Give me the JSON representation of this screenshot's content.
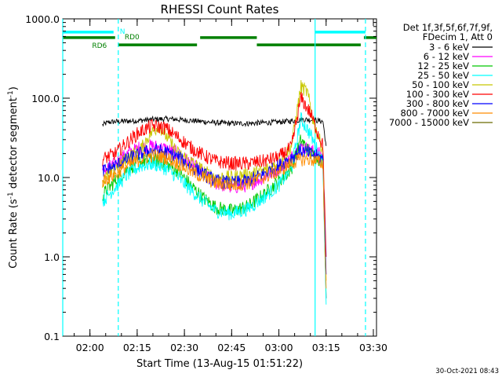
{
  "chart_data": {
    "type": "line",
    "title": "RHESSI Count Rates",
    "xlabel": "Start Time (13-Aug-15 01:51:22)",
    "ylabel_main": "Count Rate (s",
    "ylabel_sup1": "-1",
    "ylabel_mid": " detector segment",
    "ylabel_sup2": "-1",
    "ylabel_end": ")",
    "yscale": "log",
    "ylim": [
      0.1,
      1000
    ],
    "xlim": [
      "01:51:22",
      "03:31:00"
    ],
    "grid": false,
    "x_ticks": [
      {
        "label": "02:00",
        "t": "02:00"
      },
      {
        "label": "02:15",
        "t": "02:15"
      },
      {
        "label": "02:30",
        "t": "02:30"
      },
      {
        "label": "02:45",
        "t": "02:45"
      },
      {
        "label": "03:00",
        "t": "03:00"
      },
      {
        "label": "03:15",
        "t": "03:15"
      },
      {
        "label": "03:30",
        "t": "03:30"
      }
    ],
    "y_ticks": [
      {
        "label": "0.1",
        "value": 0.1
      },
      {
        "label": "1.0",
        "value": 1
      },
      {
        "label": "10.0",
        "value": 10
      },
      {
        "label": "100.0",
        "value": 100
      },
      {
        "label": "1000.0",
        "value": 1000
      }
    ],
    "legend": {
      "placement": "top-right",
      "header": [
        "Det 1f,3f,5f,6f,7f,9f,",
        "FDecim 1, Att 0"
      ]
    },
    "series": [
      {
        "name": "3 - 6 keV",
        "color": "#000000",
        "points": [
          [
            "02:04",
            "46"
          ],
          [
            "02:06",
            "50"
          ],
          [
            "02:10",
            "51"
          ],
          [
            "02:15",
            "52"
          ],
          [
            "02:20",
            "54"
          ],
          [
            "02:25",
            "55"
          ],
          [
            "02:30",
            "53"
          ],
          [
            "02:35",
            "51"
          ],
          [
            "02:40",
            "49"
          ],
          [
            "02:45",
            "48"
          ],
          [
            "02:50",
            "48"
          ],
          [
            "02:55",
            "49"
          ],
          [
            "03:00",
            "50"
          ],
          [
            "03:05",
            "52"
          ],
          [
            "03:08",
            "54"
          ],
          [
            "03:11",
            "53"
          ],
          [
            "03:14",
            "51"
          ],
          [
            "03:15",
            "25"
          ]
        ]
      },
      {
        "name": "6 - 12 keV",
        "color": "#ff00ff",
        "points": [
          [
            "02:04",
            "12"
          ],
          [
            "02:08",
            "15"
          ],
          [
            "02:12",
            "20"
          ],
          [
            "02:16",
            "24"
          ],
          [
            "02:20",
            "25"
          ],
          [
            "02:24",
            "23"
          ],
          [
            "02:28",
            "20"
          ],
          [
            "02:32",
            "15"
          ],
          [
            "02:36",
            "11"
          ],
          [
            "02:40",
            "8.5"
          ],
          [
            "02:45",
            "7.5"
          ],
          [
            "02:50",
            "8"
          ],
          [
            "02:55",
            "10"
          ],
          [
            "03:00",
            "13"
          ],
          [
            "03:04",
            "18"
          ],
          [
            "03:07",
            "25"
          ],
          [
            "03:10",
            "22"
          ],
          [
            "03:14",
            "19"
          ],
          [
            "03:15",
            "0.3"
          ]
        ]
      },
      {
        "name": "12 - 25 keV",
        "color": "#00c800",
        "points": [
          [
            "02:04",
            "6"
          ],
          [
            "02:08",
            "9"
          ],
          [
            "02:12",
            "13"
          ],
          [
            "02:16",
            "16"
          ],
          [
            "02:20",
            "17"
          ],
          [
            "02:24",
            "15"
          ],
          [
            "02:28",
            "12"
          ],
          [
            "02:32",
            "8"
          ],
          [
            "02:36",
            "5.5"
          ],
          [
            "02:40",
            "4.2"
          ],
          [
            "02:45",
            "3.8"
          ],
          [
            "02:50",
            "4.3"
          ],
          [
            "02:55",
            "6"
          ],
          [
            "03:00",
            "9"
          ],
          [
            "03:04",
            "13"
          ],
          [
            "03:07",
            "30"
          ],
          [
            "03:10",
            "20"
          ],
          [
            "03:14",
            "16"
          ],
          [
            "03:15",
            "0.3"
          ]
        ]
      },
      {
        "name": "25 - 50 keV",
        "color": "#00ffff",
        "points": [
          [
            "02:04",
            "5"
          ],
          [
            "02:08",
            "7.5"
          ],
          [
            "02:12",
            "11"
          ],
          [
            "02:16",
            "14"
          ],
          [
            "02:20",
            "15"
          ],
          [
            "02:24",
            "13"
          ],
          [
            "02:28",
            "10"
          ],
          [
            "02:32",
            "7"
          ],
          [
            "02:36",
            "5"
          ],
          [
            "02:40",
            "3.8"
          ],
          [
            "02:45",
            "3.5"
          ],
          [
            "02:50",
            "4"
          ],
          [
            "02:55",
            "5.5"
          ],
          [
            "03:00",
            "8"
          ],
          [
            "03:04",
            "13"
          ],
          [
            "03:07",
            "55"
          ],
          [
            "03:10",
            "35"
          ],
          [
            "03:14",
            "15"
          ],
          [
            "03:15",
            "0.25"
          ]
        ]
      },
      {
        "name": "50 - 100 keV",
        "color": "#c8c800",
        "points": [
          [
            "02:04",
            "9"
          ],
          [
            "02:08",
            "13"
          ],
          [
            "02:12",
            "18"
          ],
          [
            "02:16",
            "22"
          ],
          [
            "02:19",
            "35"
          ],
          [
            "02:22",
            "45"
          ],
          [
            "02:25",
            "30"
          ],
          [
            "02:28",
            "20"
          ],
          [
            "02:32",
            "16"
          ],
          [
            "02:36",
            "12"
          ],
          [
            "02:40",
            "10"
          ],
          [
            "02:45",
            "10"
          ],
          [
            "02:50",
            "11"
          ],
          [
            "02:55",
            "12"
          ],
          [
            "03:00",
            "15"
          ],
          [
            "03:04",
            "25"
          ],
          [
            "03:07",
            "140"
          ],
          [
            "03:09",
            "120"
          ],
          [
            "03:11",
            "50"
          ],
          [
            "03:14",
            "22"
          ],
          [
            "03:15",
            "0.5"
          ]
        ]
      },
      {
        "name": "100 - 300 keV",
        "color": "#ff0000",
        "points": [
          [
            "02:04",
            "17"
          ],
          [
            "02:08",
            "20"
          ],
          [
            "02:12",
            "28"
          ],
          [
            "02:16",
            "38"
          ],
          [
            "02:20",
            "45"
          ],
          [
            "02:24",
            "42"
          ],
          [
            "02:28",
            "32"
          ],
          [
            "02:32",
            "24"
          ],
          [
            "02:36",
            "19"
          ],
          [
            "02:40",
            "16"
          ],
          [
            "02:45",
            "15"
          ],
          [
            "02:50",
            "15"
          ],
          [
            "02:55",
            "16"
          ],
          [
            "03:00",
            "18"
          ],
          [
            "03:04",
            "24"
          ],
          [
            "03:07",
            "100"
          ],
          [
            "03:10",
            "65"
          ],
          [
            "03:14",
            "25"
          ],
          [
            "03:15",
            "1"
          ]
        ]
      },
      {
        "name": "300 - 800 keV",
        "color": "#0000ff",
        "points": [
          [
            "02:04",
            "12"
          ],
          [
            "02:08",
            "14"
          ],
          [
            "02:12",
            "17"
          ],
          [
            "02:16",
            "20"
          ],
          [
            "02:20",
            "22"
          ],
          [
            "02:24",
            "21"
          ],
          [
            "02:28",
            "18"
          ],
          [
            "02:32",
            "14"
          ],
          [
            "02:36",
            "11"
          ],
          [
            "02:40",
            "9"
          ],
          [
            "02:45",
            "8.5"
          ],
          [
            "02:50",
            "9"
          ],
          [
            "02:55",
            "11"
          ],
          [
            "03:00",
            "14"
          ],
          [
            "03:04",
            "18"
          ],
          [
            "03:07",
            "22"
          ],
          [
            "03:10",
            "20"
          ],
          [
            "03:14",
            "17"
          ],
          [
            "03:15",
            "0.6"
          ]
        ]
      },
      {
        "name": "800 - 7000 keV",
        "color": "#ff8c00",
        "points": [
          [
            "02:04",
            "9"
          ],
          [
            "02:08",
            "11"
          ],
          [
            "02:12",
            "14"
          ],
          [
            "02:16",
            "17"
          ],
          [
            "02:20",
            "19"
          ],
          [
            "02:24",
            "18"
          ],
          [
            "02:28",
            "15"
          ],
          [
            "02:32",
            "12"
          ],
          [
            "02:36",
            "10"
          ],
          [
            "02:40",
            "8.5"
          ],
          [
            "02:45",
            "8"
          ],
          [
            "02:50",
            "8.5"
          ],
          [
            "02:55",
            "10"
          ],
          [
            "03:00",
            "12"
          ],
          [
            "03:04",
            "15"
          ],
          [
            "03:07",
            "17"
          ],
          [
            "03:10",
            "17"
          ],
          [
            "03:14",
            "15"
          ],
          [
            "03:15",
            "0.4"
          ]
        ]
      },
      {
        "name": "7000 - 15000 keV",
        "color": "#6b6b00",
        "points": []
      }
    ],
    "annotations": {
      "solid_vlines": [
        {
          "color": "#00ffff",
          "t": [
            "01:51:22",
            "03:11:30"
          ]
        }
      ],
      "dashed_vlines": [
        {
          "color": "#00ffff",
          "t": [
            "02:09:00",
            "03:27:30"
          ]
        }
      ],
      "flag_bars": [
        {
          "label": "N",
          "color": "#00ffff",
          "value": 680,
          "segments": [
            [
              "01:51:22",
              "02:07:30"
            ],
            [
              "03:11:30",
              "03:27:30"
            ]
          ]
        },
        {
          "label": "RD0",
          "color": "#008000",
          "value": 580,
          "segments": [
            [
              "01:51:22",
              "02:08:00"
            ],
            [
              "02:35:00",
              "02:53:00"
            ],
            [
              "03:27:00",
              "03:31:00"
            ]
          ]
        },
        {
          "label": "RD6",
          "color": "#008000",
          "value": 470,
          "segments": [
            [
              "02:09:00",
              "02:34:00"
            ],
            [
              "02:53:00",
              "03:26:00"
            ]
          ]
        }
      ]
    },
    "timestamp": "30-Oct-2021 08:43"
  }
}
